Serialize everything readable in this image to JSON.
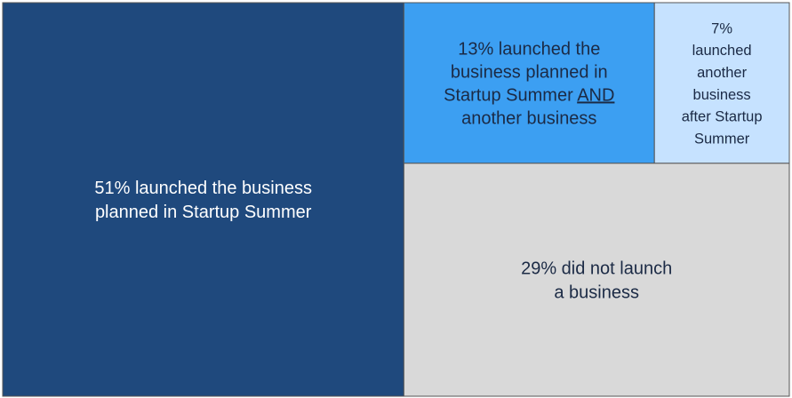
{
  "chart_data": {
    "type": "treemap",
    "categories": [
      null,
      null,
      null,
      null
    ],
    "values": [
      51,
      13,
      7,
      29
    ],
    "labels": [
      [
        [
          "51% launched the business"
        ],
        [
          "planned in Startup Summer"
        ]
      ],
      [
        [
          "13% launched the"
        ],
        [
          "business planned in"
        ],
        [
          "Startup Summer ",
          {
            "text": "AND",
            "underline": true
          }
        ],
        [
          "another business"
        ]
      ],
      [
        [
          "7%"
        ],
        [
          "launched"
        ],
        [
          "another"
        ],
        [
          "business"
        ],
        [
          "after Startup"
        ],
        [
          "Summer"
        ]
      ],
      [
        [
          "29% did not launch"
        ],
        [
          "a business"
        ]
      ]
    ],
    "colors": [
      "#1f497d",
      "#3c9ff2",
      "#c6e2ff",
      "#d9d9d9"
    ],
    "text_colors": [
      "#ffffff",
      "#1b2a45",
      "#1b2a45",
      "#1b2a45"
    ]
  }
}
